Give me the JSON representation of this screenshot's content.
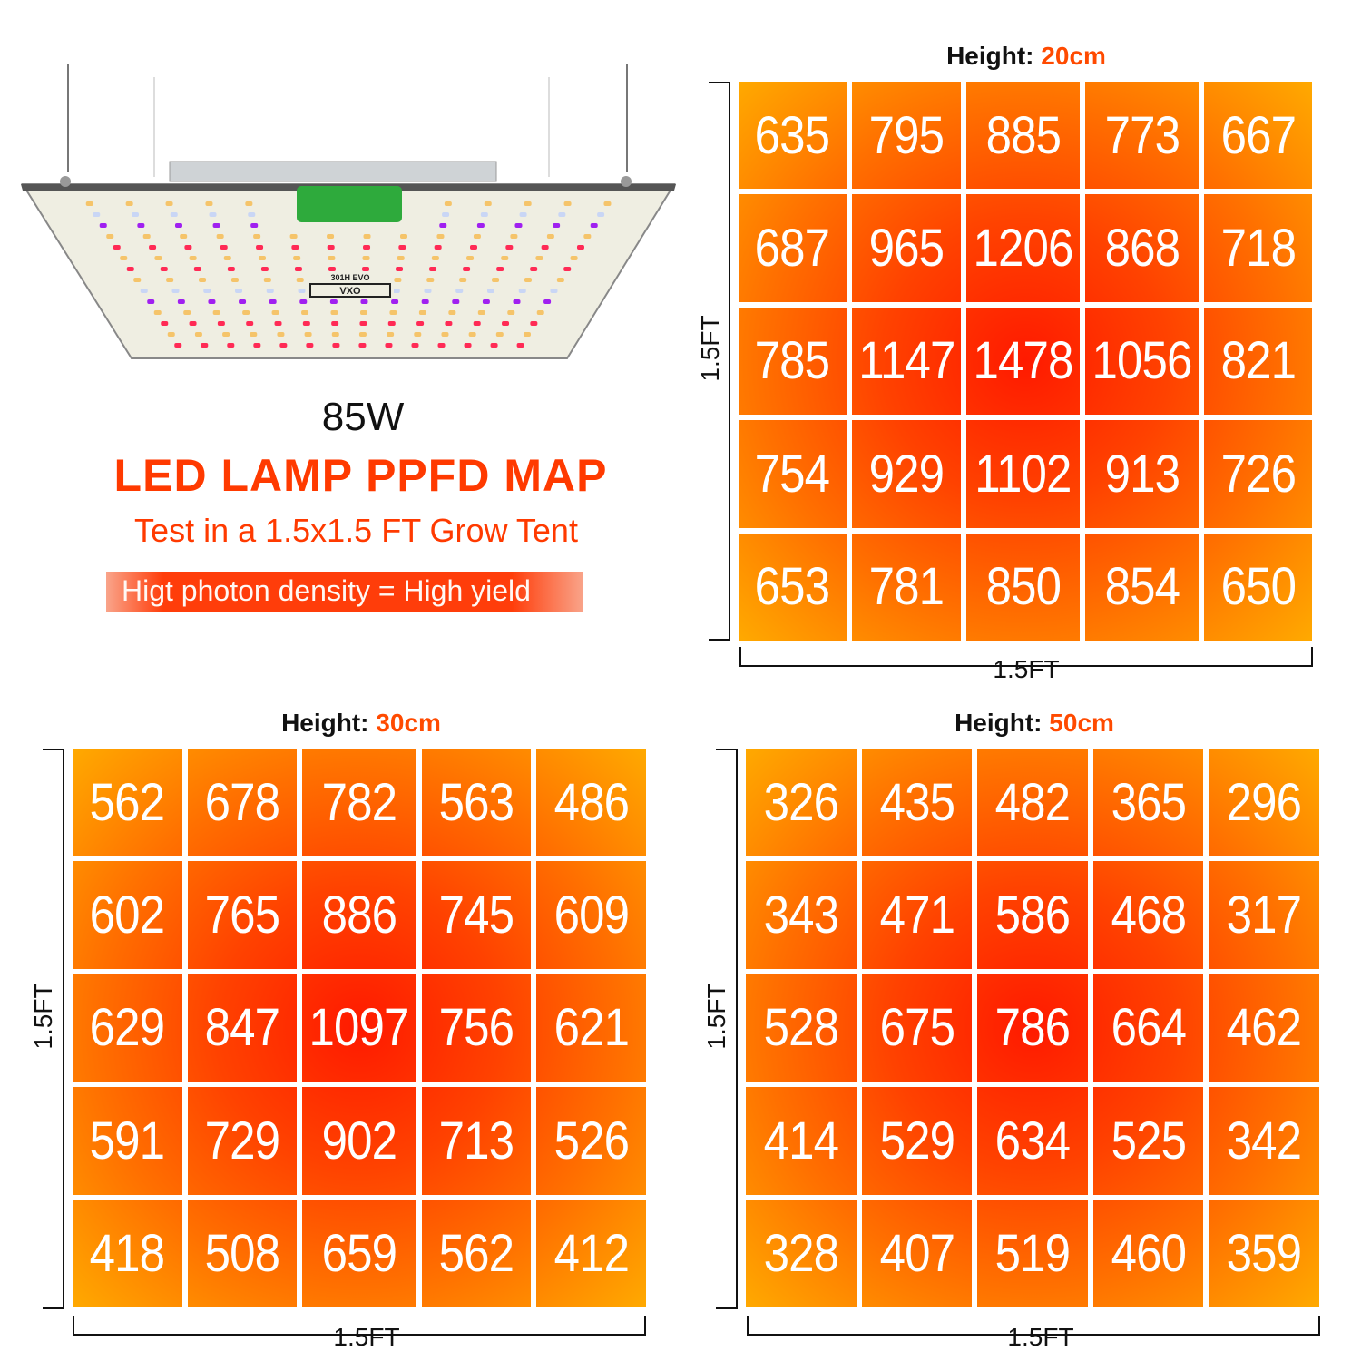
{
  "header": {
    "wattage": "85W",
    "title": "LED LAMP PPFD MAP",
    "subtitle": "Test in a 1.5x1.5 FT Grow Tent",
    "banner": "Higt photon density = High yield"
  },
  "lamp": {
    "brand_text": "VXO",
    "model_text": "301H EVO",
    "panel_color": "#efeee2",
    "driver_color": "#2eaa3c"
  },
  "colors": {
    "accent": "#ff3a00",
    "cell_hot": "#ff1a00",
    "cell_cool": "#ffab00"
  },
  "chart_data": [
    {
      "type": "heatmap",
      "title_label": "Height:",
      "title_value": "20cm",
      "xlabel": "1.5FT",
      "ylabel": "1.5FT",
      "values": [
        [
          635,
          795,
          885,
          773,
          667
        ],
        [
          687,
          965,
          1206,
          868,
          718
        ],
        [
          785,
          1147,
          1478,
          1056,
          821
        ],
        [
          754,
          929,
          1102,
          913,
          726
        ],
        [
          653,
          781,
          850,
          854,
          650
        ]
      ]
    },
    {
      "type": "heatmap",
      "title_label": "Height:",
      "title_value": "30cm",
      "xlabel": "1.5FT",
      "ylabel": "1.5FT",
      "values": [
        [
          562,
          678,
          782,
          563,
          486
        ],
        [
          602,
          765,
          886,
          745,
          609
        ],
        [
          629,
          847,
          1097,
          756,
          621
        ],
        [
          591,
          729,
          902,
          713,
          526
        ],
        [
          418,
          508,
          659,
          562,
          412
        ]
      ]
    },
    {
      "type": "heatmap",
      "title_label": "Height:",
      "title_value": "50cm",
      "xlabel": "1.5FT",
      "ylabel": "1.5FT",
      "values": [
        [
          326,
          435,
          482,
          365,
          296
        ],
        [
          343,
          471,
          586,
          468,
          317
        ],
        [
          528,
          675,
          786,
          664,
          462
        ],
        [
          414,
          529,
          634,
          525,
          342
        ],
        [
          328,
          407,
          519,
          460,
          359
        ]
      ]
    }
  ]
}
